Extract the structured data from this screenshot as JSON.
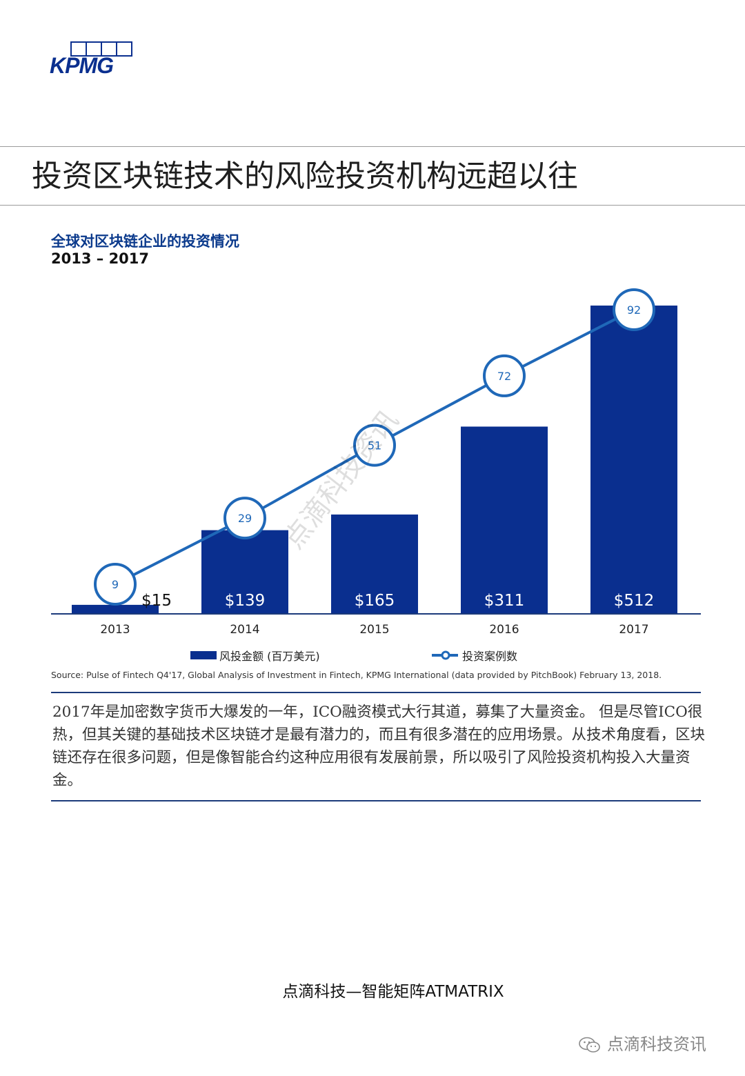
{
  "logo": {
    "text": "KPMG"
  },
  "page": {
    "title": "投资区块链技术的风险投资机构远超以往",
    "body_text": "2017年是加密数字货币大爆发的一年，ICO融资模式大行其道，募集了大量资金。 但是尽管ICO很热，但其关键的基础技术区块链才是最有潜力的，而且有很多潜在的应用场景。从技术角度看，区块链还存在很多问题，但是像智能合约这种应用很有发展前景，所以吸引了风险投资机构投入大量资金。",
    "footer": "点滴科技—智能矩阵ATMATRIX",
    "watermark": "点滴科技资讯",
    "diagonal_watermark": "点滴科技资讯"
  },
  "colors": {
    "bar": "#0a2f8f",
    "line": "#1f68b8",
    "rule": "#1b3a7a",
    "title": "#0b3a8c"
  },
  "chart_data": {
    "type": "bar",
    "title": "全球对区块链企业的投资情况",
    "subtitle": "2013 – 2017",
    "categories": [
      "2013",
      "2014",
      "2015",
      "2016",
      "2017"
    ],
    "series": [
      {
        "name": "风投金额 (百万美元)",
        "type": "bar",
        "values": [
          15,
          139,
          165,
          311,
          512
        ],
        "labels": [
          "$15",
          "$139",
          "$165",
          "$311",
          "$512"
        ]
      },
      {
        "name": "投资案例数",
        "type": "line",
        "values": [
          9,
          29,
          51,
          72,
          92
        ]
      }
    ],
    "grid": false,
    "legend": "bottom",
    "source": "Source: Pulse of Fintech Q4'17, Global Analysis of Investment in Fintech, KPMG International (data provided by PitchBook) February 13, 2018."
  }
}
